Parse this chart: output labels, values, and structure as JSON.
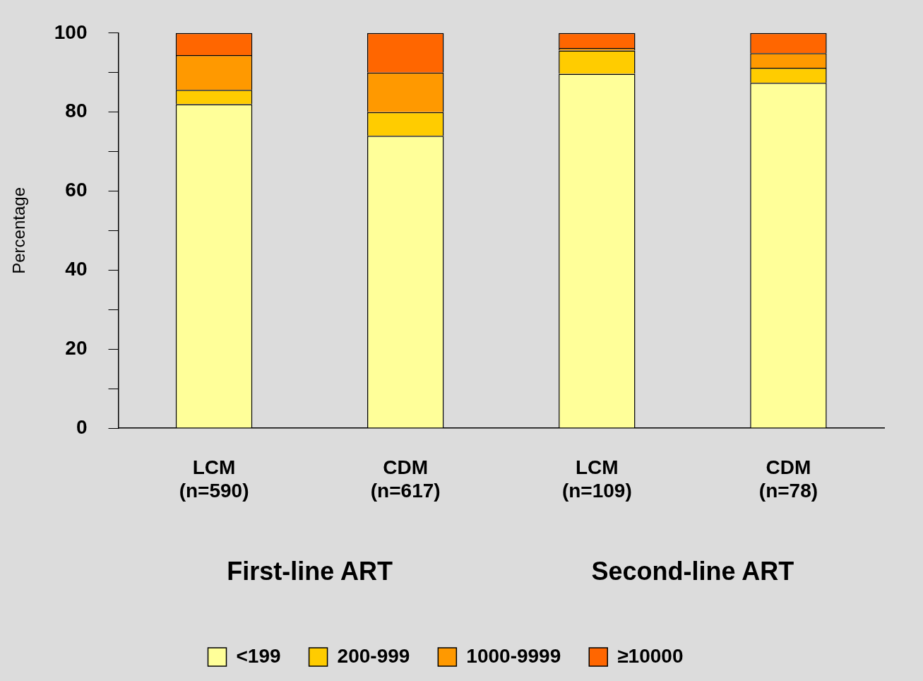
{
  "chart_data": {
    "type": "bar",
    "stacked": true,
    "ylabel": "Percentage",
    "categories": [
      "LCM (n=590)",
      "CDM (n=617)",
      "LCM (n=109)",
      "CDM (n=78)"
    ],
    "series": [
      {
        "name": "<199",
        "color": "#ffff99",
        "values": [
          82,
          74,
          89.7,
          87.4
        ]
      },
      {
        "name": "200-999",
        "color": "#ffcc00",
        "values": [
          3.6,
          6,
          5.9,
          3.8
        ]
      },
      {
        "name": "1000-9999",
        "color": "#ff9900",
        "values": [
          8.8,
          10,
          0.6,
          3.7
        ]
      },
      {
        "name": "≥10000",
        "color": "#ff6600",
        "values": [
          5.6,
          10,
          3.8,
          5.1
        ]
      }
    ],
    "ylim": [
      0,
      100
    ],
    "yticks": [
      0,
      {
        "value": 10,
        "label": null
      },
      20,
      {
        "value": 30,
        "label": null
      },
      40,
      {
        "value": 50,
        "label": null
      },
      60,
      {
        "value": 70,
        "label": null
      },
      80,
      {
        "value": 90,
        "label": null
      },
      100
    ],
    "annotations": [
      "First-line ART",
      "Second-line ART"
    ],
    "grid": false,
    "legend": "bottom"
  }
}
